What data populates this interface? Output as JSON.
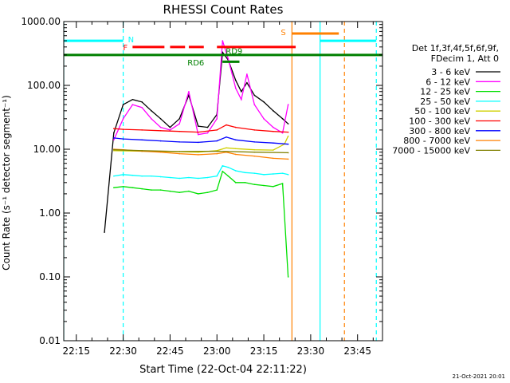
{
  "chart_data": {
    "type": "line",
    "title": "RHESSI Count Rates",
    "xlabel": "Start Time (22-Oct-04 22:11:22)",
    "ylabel": "Count Rate (s⁻¹ detector segment⁻¹)",
    "y_scale": "log",
    "ylim": [
      0.01,
      1000
    ],
    "xlim_minutes": [
      22.183,
      23.883
    ],
    "x_ticks": [
      "22:15",
      "22:30",
      "22:45",
      "23:00",
      "23:15",
      "23:30",
      "23:45"
    ],
    "y_ticks": [
      "0.01",
      "0.10",
      "1.00",
      "10.00",
      "100.00",
      "1000.00"
    ],
    "footer_date": "21-Oct-2021 20:01",
    "legend": {
      "header": [
        "Det 1f,3f,4f,5f,6f,9f,",
        "FDecim 1, Att 0"
      ],
      "entries": [
        {
          "label": "3 - 6 keV",
          "color": "#000000"
        },
        {
          "label": "6 - 12 keV",
          "color": "#ff00ff"
        },
        {
          "label": "12 - 25 keV",
          "color": "#00e000"
        },
        {
          "label": "25 - 50 keV",
          "color": "#00ffff"
        },
        {
          "label": "50 - 100 keV",
          "color": "#d0d000"
        },
        {
          "label": "100 - 300 keV",
          "color": "#ff0000"
        },
        {
          "label": "300 - 800 keV",
          "color": "#0000ff"
        },
        {
          "label": "800 - 7000 keV",
          "color": "#ff8000"
        },
        {
          "label": "7000 - 15000 keV",
          "color": "#808000"
        }
      ]
    },
    "flag_bars": {
      "N": {
        "label": "N",
        "color": "#00ffff",
        "value": 500,
        "segments": [
          [
            22.183,
            22.5
          ],
          [
            23.55,
            23.85
          ]
        ]
      },
      "F": {
        "label": "F",
        "color": "#ff0000",
        "value": 400,
        "segments": [
          [
            22.55,
            22.72
          ],
          [
            22.75,
            22.83
          ],
          [
            22.85,
            22.93
          ],
          [
            23.0,
            23.42
          ]
        ]
      },
      "S": {
        "label": "S",
        "color": "#ff8000",
        "value": 650,
        "segments": [
          [
            23.4,
            23.65
          ]
        ]
      },
      "RD9": {
        "label": "RD9",
        "color": "#008000",
        "value": 235,
        "segments": [
          [
            23.03,
            23.12
          ]
        ]
      },
      "RD6": {
        "label": "RD6",
        "color": "#008000",
        "value": 300,
        "segments": [
          [
            22.183,
            23.883
          ]
        ]
      }
    },
    "vertical_lines": [
      {
        "x": 22.5,
        "color": "#00ffff",
        "style": "dashed"
      },
      {
        "x": 23.4,
        "color": "#ff8000",
        "style": "solid"
      },
      {
        "x": 23.55,
        "color": "#00ffff",
        "style": "solid"
      },
      {
        "x": 23.68,
        "color": "#ff8000",
        "style": "dashed"
      },
      {
        "x": 23.85,
        "color": "#00ffff",
        "style": "dashed"
      },
      {
        "x": 22.183,
        "color": "#00ffff",
        "style": "solid"
      }
    ],
    "series": [
      {
        "name": "3 - 6 keV",
        "color": "#000000",
        "x": [
          22.4,
          22.45,
          22.5,
          22.55,
          22.6,
          22.65,
          22.7,
          22.75,
          22.8,
          22.85,
          22.9,
          22.95,
          23.0,
          23.03,
          23.06,
          23.1,
          23.13,
          23.16,
          23.2,
          23.25,
          23.3,
          23.35,
          23.38
        ],
        "y": [
          0.5,
          18,
          50,
          60,
          55,
          40,
          30,
          22,
          30,
          70,
          23,
          22,
          35,
          330,
          250,
          120,
          80,
          110,
          70,
          55,
          40,
          30,
          25
        ]
      },
      {
        "name": "6 - 12 keV",
        "color": "#ff00ff",
        "x": [
          22.45,
          22.5,
          22.55,
          22.6,
          22.65,
          22.7,
          22.75,
          22.8,
          22.85,
          22.9,
          22.95,
          23.0,
          23.03,
          23.06,
          23.1,
          23.13,
          23.16,
          23.2,
          23.25,
          23.3,
          23.35,
          23.38
        ],
        "y": [
          14,
          30,
          50,
          45,
          30,
          22,
          20,
          25,
          80,
          17,
          18,
          30,
          500,
          260,
          90,
          60,
          150,
          50,
          30,
          22,
          18,
          50
        ]
      },
      {
        "name": "12 - 25 keV",
        "color": "#00e000",
        "x": [
          22.45,
          22.5,
          22.55,
          22.6,
          22.65,
          22.7,
          22.75,
          22.8,
          22.85,
          22.9,
          22.95,
          23.0,
          23.03,
          23.06,
          23.1,
          23.15,
          23.2,
          23.25,
          23.3,
          23.35,
          23.38
        ],
        "y": [
          2.5,
          2.6,
          2.5,
          2.4,
          2.3,
          2.3,
          2.2,
          2.1,
          2.2,
          2.0,
          2.1,
          2.3,
          4.5,
          3.8,
          3.0,
          3.0,
          2.8,
          2.7,
          2.6,
          2.9,
          0.1
        ]
      },
      {
        "name": "25 - 50 keV",
        "color": "#00ffff",
        "x": [
          22.45,
          22.5,
          22.55,
          22.6,
          22.65,
          22.7,
          22.75,
          22.8,
          22.85,
          22.9,
          22.95,
          23.0,
          23.03,
          23.06,
          23.1,
          23.15,
          23.2,
          23.25,
          23.3,
          23.35,
          23.38
        ],
        "y": [
          3.8,
          4.0,
          3.9,
          3.8,
          3.8,
          3.7,
          3.6,
          3.5,
          3.6,
          3.5,
          3.6,
          3.8,
          5.5,
          5.2,
          4.6,
          4.3,
          4.2,
          4.0,
          4.1,
          4.2,
          4.0
        ]
      },
      {
        "name": "50 - 100 keV",
        "color": "#d0d000",
        "x": [
          22.45,
          22.6,
          22.75,
          22.9,
          23.0,
          23.05,
          23.1,
          23.2,
          23.3,
          23.36,
          23.38
        ],
        "y": [
          9.5,
          9.3,
          9.2,
          9.0,
          9.5,
          10.5,
          10.2,
          9.8,
          9.7,
          12,
          16
        ]
      },
      {
        "name": "100 - 300 keV",
        "color": "#ff0000",
        "x": [
          22.45,
          22.5,
          22.6,
          22.7,
          22.8,
          22.9,
          23.0,
          23.05,
          23.1,
          23.2,
          23.3,
          23.38
        ],
        "y": [
          21,
          20.5,
          20,
          19.5,
          19,
          18.5,
          20,
          24,
          22,
          20,
          19,
          18.5
        ]
      },
      {
        "name": "300 - 800 keV",
        "color": "#0000ff",
        "x": [
          22.45,
          22.5,
          22.6,
          22.7,
          22.8,
          22.9,
          23.0,
          23.05,
          23.1,
          23.2,
          23.3,
          23.38
        ],
        "y": [
          15,
          14.5,
          14,
          13.5,
          13,
          12.8,
          13.5,
          15.5,
          14,
          13,
          12.5,
          12
        ]
      },
      {
        "name": "800 - 7000 keV",
        "color": "#ff8000",
        "x": [
          22.45,
          22.5,
          22.6,
          22.7,
          22.8,
          22.9,
          23.0,
          23.05,
          23.1,
          23.2,
          23.3,
          23.38
        ],
        "y": [
          10,
          9.8,
          9.3,
          9.0,
          8.5,
          8.2,
          8.5,
          9.0,
          8.3,
          7.8,
          7.2,
          7.0
        ]
      },
      {
        "name": "7000 - 15000 keV",
        "color": "#808000",
        "x": [
          22.45,
          22.6,
          22.8,
          23.0,
          23.2,
          23.38
        ],
        "y": [
          9.8,
          9.5,
          9.2,
          9.3,
          9.0,
          8.8
        ]
      }
    ]
  }
}
